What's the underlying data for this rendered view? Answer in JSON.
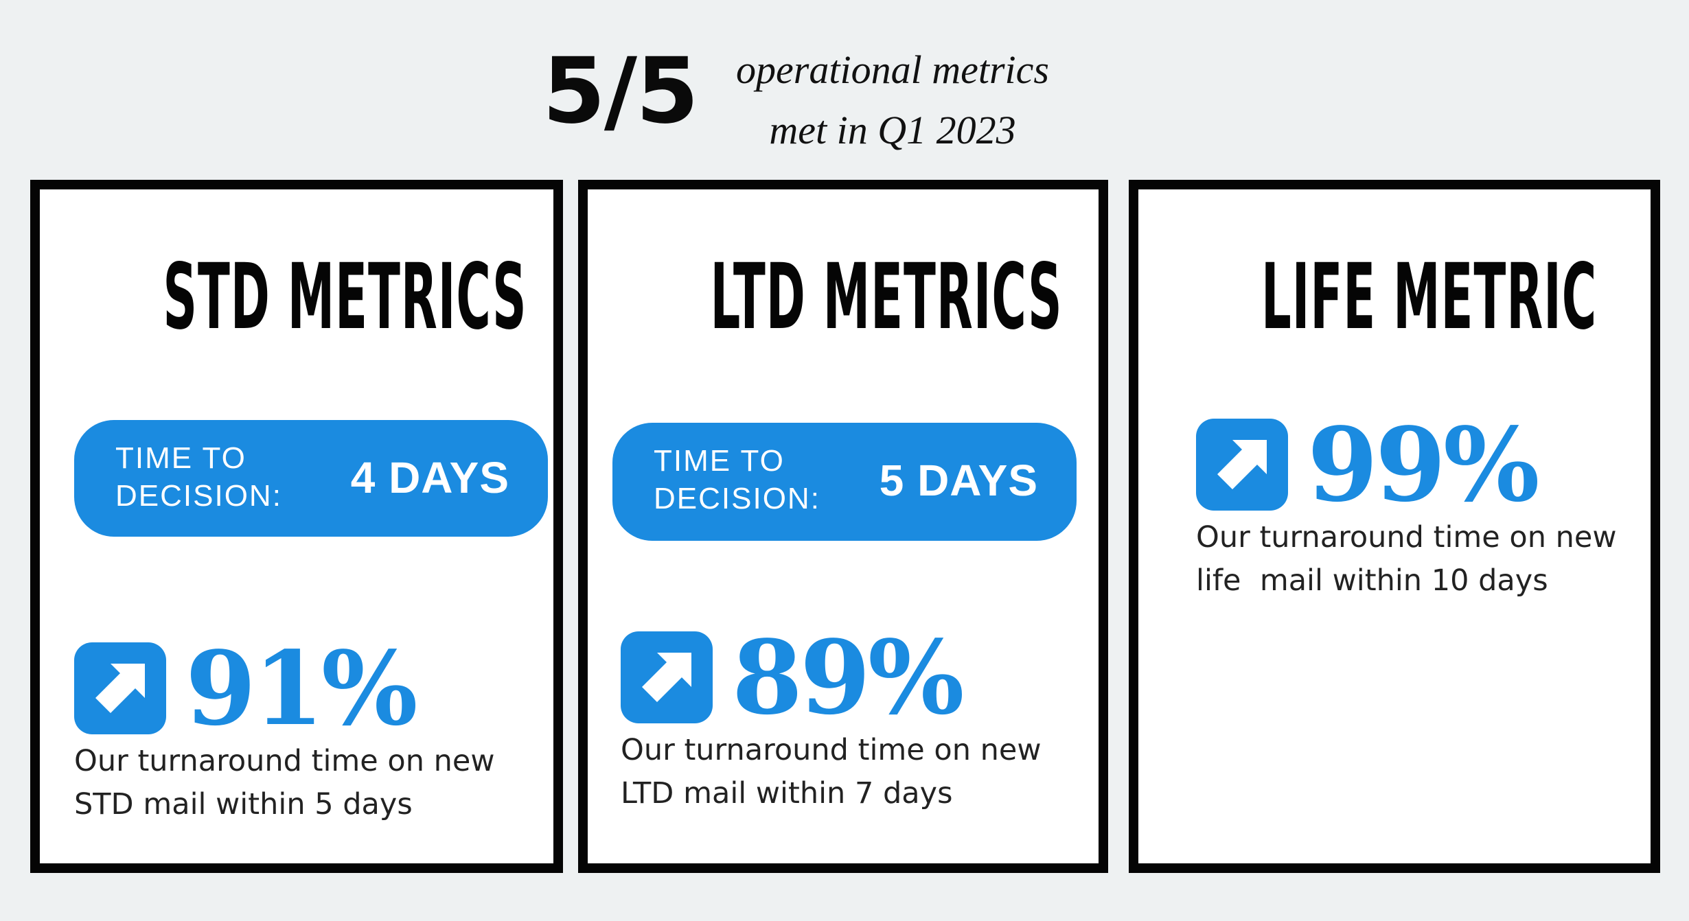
{
  "header": {
    "score": "5/5",
    "caption_line1": "operational metrics",
    "caption_line2": "met in Q1 2023"
  },
  "colors": {
    "accent": "#1b8be0",
    "background": "#eef1f2",
    "card_border": "#050505"
  },
  "cards": [
    {
      "title": "STD METRICS",
      "pill_label": "TIME TO\nDECISION:",
      "pill_value": "4 DAYS",
      "stat_icon": "arrow-up-right-icon",
      "stat_value": "91%",
      "stat_desc": "Our turnaround time on new\nSTD mail within 5 days"
    },
    {
      "title": "LTD METRICS",
      "pill_label": "TIME TO\nDECISION:",
      "pill_value": "5 DAYS",
      "stat_icon": "arrow-up-right-icon",
      "stat_value": "89%",
      "stat_desc": "Our turnaround time on new\nLTD mail within 7 days"
    },
    {
      "title": "LIFE METRIC",
      "stat_icon": "arrow-up-right-icon",
      "stat_value": "99%",
      "stat_desc": "Our turnaround time on new\nlife  mail within 10 days"
    }
  ]
}
